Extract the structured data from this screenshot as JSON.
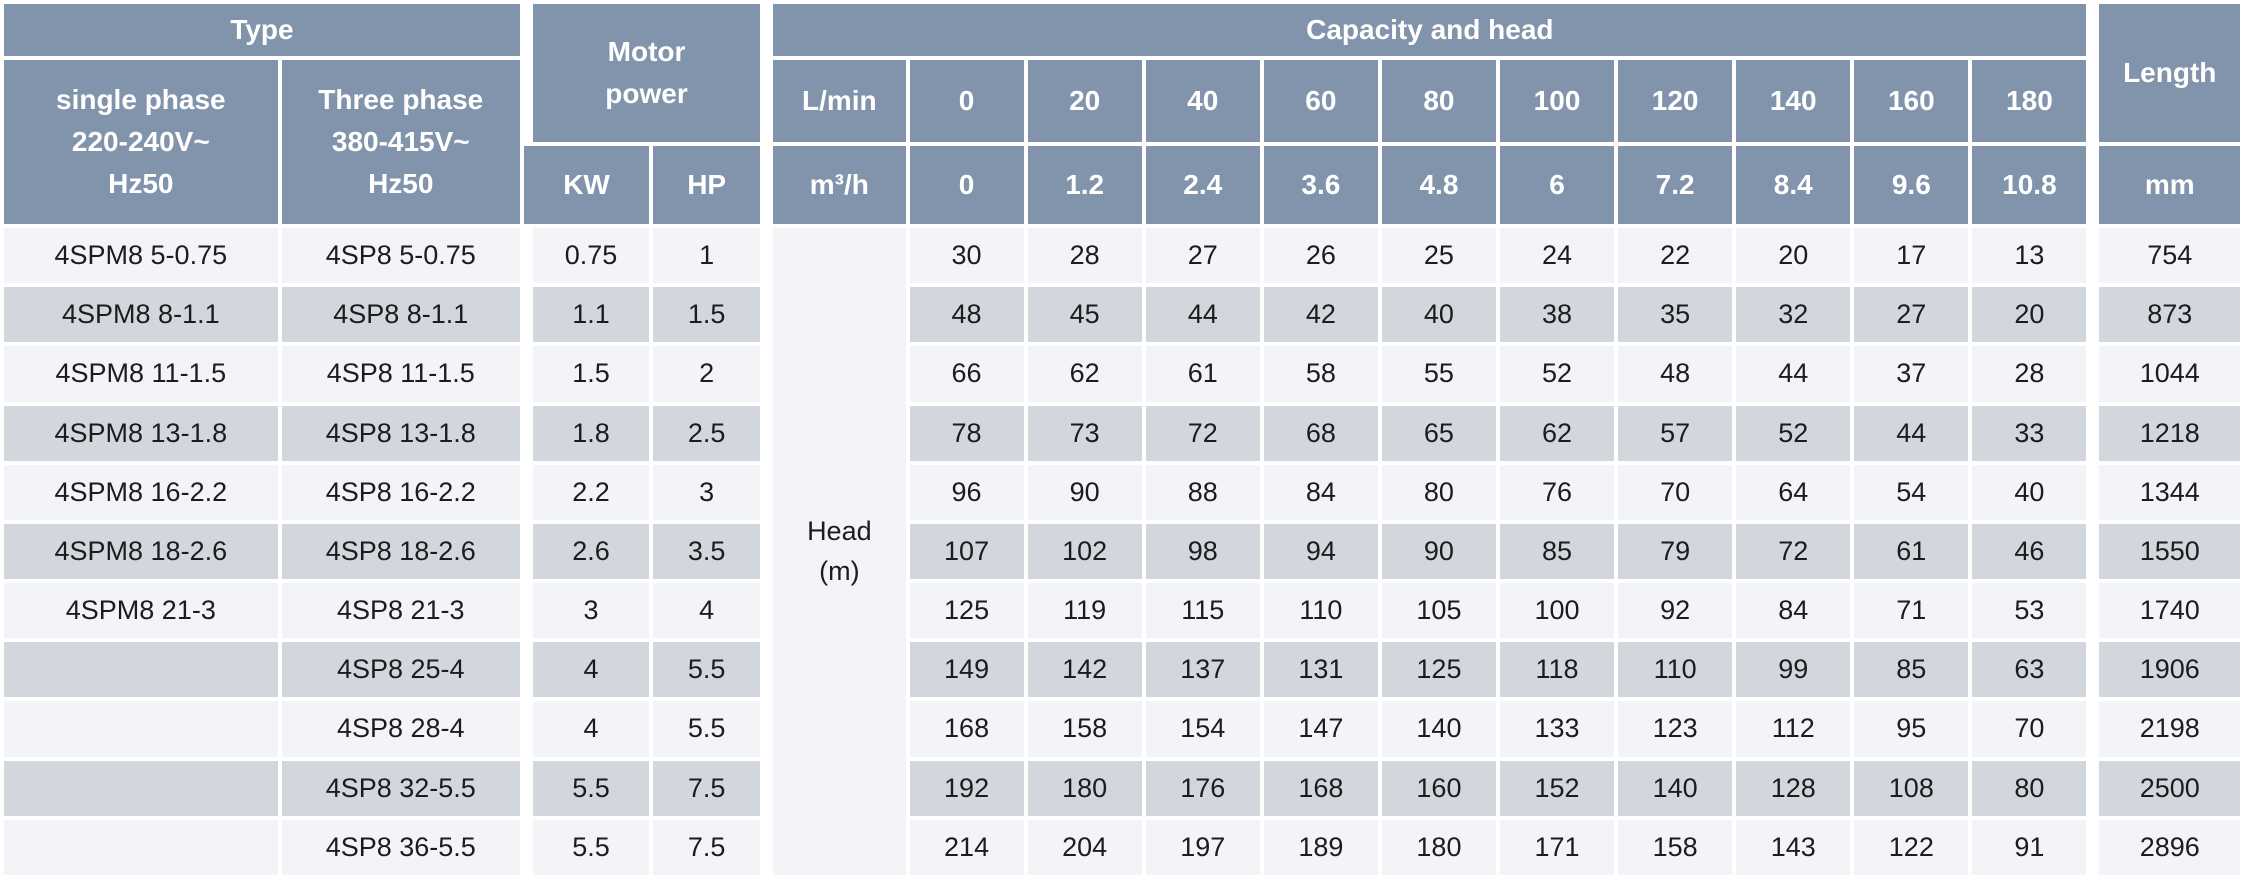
{
  "colors": {
    "header_bg": "#8294AC",
    "row_light": "#F2F4F8",
    "row_shaded": "#D2D7DE",
    "text_dark": "#1C1C1E",
    "grid": "#FFFFFF"
  },
  "header": {
    "type_label": "Type",
    "single_phase_lines": [
      "single phase",
      "220-240V~",
      "Hz50"
    ],
    "three_phase_lines": [
      "Three phase",
      "380-415V~",
      "Hz50"
    ],
    "motor_power_lines": [
      "Motor",
      "power"
    ],
    "kw_label": "KW",
    "hp_label": "HP",
    "capacity_title": "Capacity and head",
    "lmin_label": "L/min",
    "m3h_label": "m³/h",
    "lmin_values": [
      "0",
      "20",
      "40",
      "60",
      "80",
      "100",
      "120",
      "140",
      "160",
      "180"
    ],
    "m3h_values": [
      "0",
      "1.2",
      "2.4",
      "3.6",
      "4.8",
      "6",
      "7.2",
      "8.4",
      "9.6",
      "10.8"
    ],
    "length_label": "Length",
    "length_unit": "mm"
  },
  "body": {
    "head_unit_lines": [
      "Head",
      "(m)"
    ],
    "rows": [
      {
        "single_phase": "4SPM8 5-0.75",
        "three_phase": "4SP8 5-0.75",
        "kw": "0.75",
        "hp": "1",
        "heads": [
          "30",
          "28",
          "27",
          "26",
          "25",
          "24",
          "22",
          "20",
          "17",
          "13"
        ],
        "length": "754"
      },
      {
        "single_phase": "4SPM8 8-1.1",
        "three_phase": "4SP8 8-1.1",
        "kw": "1.1",
        "hp": "1.5",
        "heads": [
          "48",
          "45",
          "44",
          "42",
          "40",
          "38",
          "35",
          "32",
          "27",
          "20"
        ],
        "length": "873"
      },
      {
        "single_phase": "4SPM8 11-1.5",
        "three_phase": "4SP8 11-1.5",
        "kw": "1.5",
        "hp": "2",
        "heads": [
          "66",
          "62",
          "61",
          "58",
          "55",
          "52",
          "48",
          "44",
          "37",
          "28"
        ],
        "length": "1044"
      },
      {
        "single_phase": "4SPM8 13-1.8",
        "three_phase": "4SP8 13-1.8",
        "kw": "1.8",
        "hp": "2.5",
        "heads": [
          "78",
          "73",
          "72",
          "68",
          "65",
          "62",
          "57",
          "52",
          "44",
          "33"
        ],
        "length": "1218"
      },
      {
        "single_phase": "4SPM8 16-2.2",
        "three_phase": "4SP8 16-2.2",
        "kw": "2.2",
        "hp": "3",
        "heads": [
          "96",
          "90",
          "88",
          "84",
          "80",
          "76",
          "70",
          "64",
          "54",
          "40"
        ],
        "length": "1344"
      },
      {
        "single_phase": "4SPM8 18-2.6",
        "three_phase": "4SP8 18-2.6",
        "kw": "2.6",
        "hp": "3.5",
        "heads": [
          "107",
          "102",
          "98",
          "94",
          "90",
          "85",
          "79",
          "72",
          "61",
          "46"
        ],
        "length": "1550"
      },
      {
        "single_phase": "4SPM8 21-3",
        "three_phase": "4SP8 21-3",
        "kw": "3",
        "hp": "4",
        "heads": [
          "125",
          "119",
          "115",
          "110",
          "105",
          "100",
          "92",
          "84",
          "71",
          "53"
        ],
        "length": "1740"
      },
      {
        "single_phase": "",
        "three_phase": "4SP8 25-4",
        "kw": "4",
        "hp": "5.5",
        "heads": [
          "149",
          "142",
          "137",
          "131",
          "125",
          "118",
          "110",
          "99",
          "85",
          "63"
        ],
        "length": "1906"
      },
      {
        "single_phase": "",
        "three_phase": "4SP8 28-4",
        "kw": "4",
        "hp": "5.5",
        "heads": [
          "168",
          "158",
          "154",
          "147",
          "140",
          "133",
          "123",
          "112",
          "95",
          "70"
        ],
        "length": "2198"
      },
      {
        "single_phase": "",
        "three_phase": "4SP8 32-5.5",
        "kw": "5.5",
        "hp": "7.5",
        "heads": [
          "192",
          "180",
          "176",
          "168",
          "160",
          "152",
          "140",
          "128",
          "108",
          "80"
        ],
        "length": "2500"
      },
      {
        "single_phase": "",
        "three_phase": "4SP8 36-5.5",
        "kw": "5.5",
        "hp": "7.5",
        "heads": [
          "214",
          "204",
          "197",
          "189",
          "180",
          "171",
          "158",
          "143",
          "122",
          "91"
        ],
        "length": "2896"
      }
    ]
  }
}
